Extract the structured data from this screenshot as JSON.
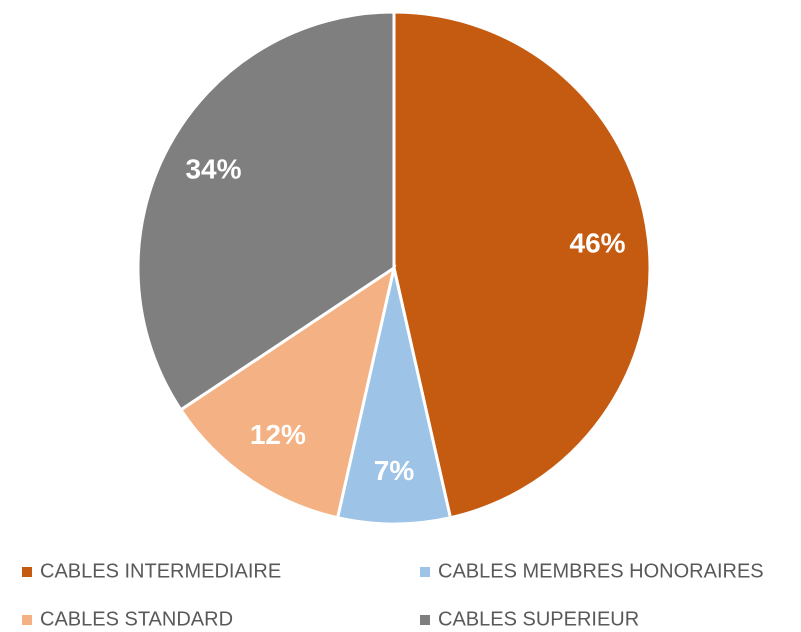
{
  "chart_data": {
    "type": "pie",
    "categories": [
      "CABLES INTERMEDIAIRE",
      "CABLES MEMBRES HONORAIRES",
      "CABLES STANDARD",
      "CABLES SUPERIEUR"
    ],
    "values": [
      46,
      7,
      12,
      34
    ],
    "value_labels": [
      "46%",
      "7%",
      "12%",
      "34%"
    ],
    "colors": [
      "#c55a11",
      "#9dc3e6",
      "#f4b183",
      "#7f7f7f"
    ]
  }
}
